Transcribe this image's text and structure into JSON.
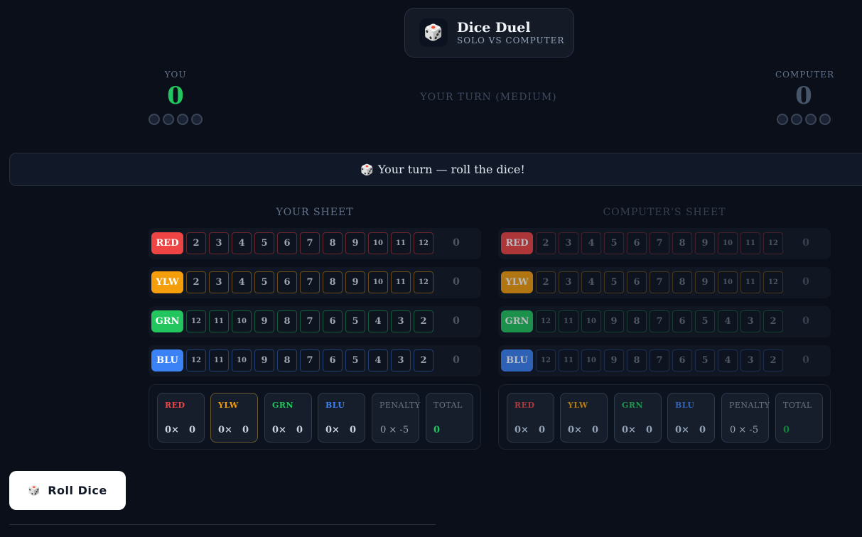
{
  "app": {
    "icon": "dice-icon",
    "glyph": "🎲",
    "title": "Dice Duel",
    "subtitle": "SOLO VS COMPUTER"
  },
  "players": {
    "you": {
      "label": "YOU",
      "score": "0",
      "color": "#22c55e"
    },
    "computer": {
      "label": "COMPUTER",
      "score": "0",
      "color": "#475569"
    }
  },
  "turn_label": "YOUR TURN (MEDIUM)",
  "banner": {
    "icon": "🎲",
    "text": "Your turn — roll the dice!"
  },
  "colors": {
    "red": "#ef4444",
    "yellow": "#f59e0b",
    "green": "#22c55e",
    "blue": "#3b82f6"
  },
  "sheets": [
    {
      "title": "YOUR SHEET",
      "rows": [
        {
          "label": "RED",
          "cells": [
            "2",
            "3",
            "4",
            "5",
            "6",
            "7",
            "8",
            "9",
            "10",
            "11",
            "12"
          ],
          "score": "0"
        },
        {
          "label": "YLW",
          "cells": [
            "2",
            "3",
            "4",
            "5",
            "6",
            "7",
            "8",
            "9",
            "10",
            "11",
            "12"
          ],
          "score": "0"
        },
        {
          "label": "GRN",
          "cells": [
            "12",
            "11",
            "10",
            "9",
            "8",
            "7",
            "6",
            "5",
            "4",
            "3",
            "2"
          ],
          "score": "0"
        },
        {
          "label": "BLU",
          "cells": [
            "12",
            "11",
            "10",
            "9",
            "8",
            "7",
            "6",
            "5",
            "4",
            "3",
            "2"
          ],
          "score": "0"
        }
      ],
      "summary": [
        {
          "label": "RED",
          "count": "0×",
          "points": "0"
        },
        {
          "label": "YLW",
          "count": "0×",
          "points": "0"
        },
        {
          "label": "GRN",
          "count": "0×",
          "points": "0"
        },
        {
          "label": "BLU",
          "count": "0×",
          "points": "0"
        }
      ],
      "penalty": {
        "label": "PENALTY",
        "value": "0 × -5"
      },
      "total": {
        "label": "TOTAL",
        "value": "0"
      }
    },
    {
      "title": "COMPUTER'S SHEET",
      "rows": [
        {
          "label": "RED",
          "cells": [
            "2",
            "3",
            "4",
            "5",
            "6",
            "7",
            "8",
            "9",
            "10",
            "11",
            "12"
          ],
          "score": "0"
        },
        {
          "label": "YLW",
          "cells": [
            "2",
            "3",
            "4",
            "5",
            "6",
            "7",
            "8",
            "9",
            "10",
            "11",
            "12"
          ],
          "score": "0"
        },
        {
          "label": "GRN",
          "cells": [
            "12",
            "11",
            "10",
            "9",
            "8",
            "7",
            "6",
            "5",
            "4",
            "3",
            "2"
          ],
          "score": "0"
        },
        {
          "label": "BLU",
          "cells": [
            "12",
            "11",
            "10",
            "9",
            "8",
            "7",
            "6",
            "5",
            "4",
            "3",
            "2"
          ],
          "score": "0"
        }
      ],
      "summary": [
        {
          "label": "RED",
          "count": "0×",
          "points": "0"
        },
        {
          "label": "YLW",
          "count": "0×",
          "points": "0"
        },
        {
          "label": "GRN",
          "count": "0×",
          "points": "0"
        },
        {
          "label": "BLU",
          "count": "0×",
          "points": "0"
        }
      ],
      "penalty": {
        "label": "PENALTY",
        "value": "0 × -5"
      },
      "total": {
        "label": "TOTAL",
        "value": "0"
      }
    }
  ],
  "roll_button": {
    "icon": "🎲",
    "label": "Roll Dice"
  }
}
